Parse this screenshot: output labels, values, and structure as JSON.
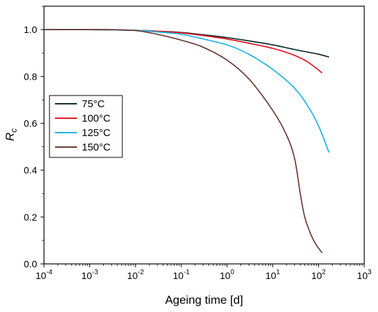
{
  "chart_data": {
    "type": "line",
    "xlabel": "Ageing time [d]",
    "ylabel_main": "R",
    "ylabel_sub": "c",
    "x_scale": "log",
    "xlim": [
      0.0001,
      1000
    ],
    "ylim": [
      0,
      1.1
    ],
    "x_ticks": [
      {
        "value": 0.0001,
        "base": "10",
        "exp": "-4"
      },
      {
        "value": 0.001,
        "base": "10",
        "exp": "-3"
      },
      {
        "value": 0.01,
        "base": "10",
        "exp": "-2"
      },
      {
        "value": 0.1,
        "base": "10",
        "exp": "-1"
      },
      {
        "value": 1,
        "base": "10",
        "exp": "0"
      },
      {
        "value": 10,
        "base": "10",
        "exp": "1"
      },
      {
        "value": 100,
        "base": "10",
        "exp": "2"
      },
      {
        "value": 1000,
        "base": "10",
        "exp": "3"
      }
    ],
    "y_ticks": [
      {
        "value": 0.0,
        "label": "0.0"
      },
      {
        "value": 0.2,
        "label": "0.2"
      },
      {
        "value": 0.4,
        "label": "0.4"
      },
      {
        "value": 0.6,
        "label": "0.6"
      },
      {
        "value": 0.8,
        "label": "0.8"
      },
      {
        "value": 1.0,
        "label": "1.0"
      }
    ],
    "grid": false,
    "legend_position": "middle-left",
    "series": [
      {
        "name": "75°C",
        "color": "#0d2b30",
        "points": [
          [
            0.0001,
            1.0
          ],
          [
            0.001,
            1.0
          ],
          [
            0.01,
            0.997
          ],
          [
            0.03,
            0.993
          ],
          [
            0.1,
            0.988
          ],
          [
            0.3,
            0.978
          ],
          [
            1,
            0.966
          ],
          [
            3,
            0.952
          ],
          [
            10,
            0.935
          ],
          [
            30,
            0.915
          ],
          [
            100,
            0.895
          ],
          [
            170,
            0.883
          ]
        ]
      },
      {
        "name": "100°C",
        "color": "#e3141e",
        "points": [
          [
            0.0001,
            1.0
          ],
          [
            0.001,
            1.0
          ],
          [
            0.01,
            0.997
          ],
          [
            0.03,
            0.993
          ],
          [
            0.1,
            0.986
          ],
          [
            0.3,
            0.975
          ],
          [
            1,
            0.96
          ],
          [
            3,
            0.942
          ],
          [
            10,
            0.92
          ],
          [
            30,
            0.89
          ],
          [
            60,
            0.86
          ],
          [
            120,
            0.815
          ]
        ]
      },
      {
        "name": "125°C",
        "color": "#1ab4e6",
        "points": [
          [
            0.0001,
            1.0
          ],
          [
            0.001,
            1.0
          ],
          [
            0.01,
            0.997
          ],
          [
            0.03,
            0.99
          ],
          [
            0.1,
            0.98
          ],
          [
            0.3,
            0.96
          ],
          [
            1,
            0.935
          ],
          [
            3,
            0.895
          ],
          [
            10,
            0.83
          ],
          [
            30,
            0.75
          ],
          [
            60,
            0.67
          ],
          [
            100,
            0.59
          ],
          [
            170,
            0.475
          ]
        ]
      },
      {
        "name": "150°C",
        "color": "#6b3a32",
        "points": [
          [
            0.0001,
            1.0
          ],
          [
            0.001,
            1.0
          ],
          [
            0.003,
            1.0
          ],
          [
            0.01,
            0.996
          ],
          [
            0.03,
            0.98
          ],
          [
            0.1,
            0.955
          ],
          [
            0.3,
            0.925
          ],
          [
            1,
            0.87
          ],
          [
            3,
            0.79
          ],
          [
            10,
            0.655
          ],
          [
            20,
            0.55
          ],
          [
            30,
            0.45
          ],
          [
            40,
            0.3
          ],
          [
            50,
            0.2
          ],
          [
            70,
            0.12
          ],
          [
            90,
            0.08
          ],
          [
            120,
            0.047
          ]
        ]
      }
    ]
  }
}
